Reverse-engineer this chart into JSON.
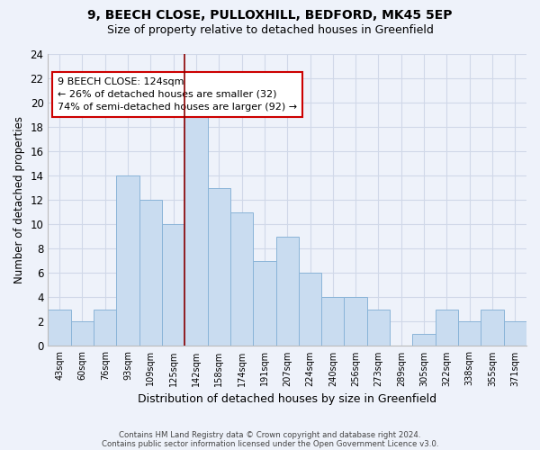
{
  "title": "9, BEECH CLOSE, PULLOXHILL, BEDFORD, MK45 5EP",
  "subtitle": "Size of property relative to detached houses in Greenfield",
  "xlabel": "Distribution of detached houses by size in Greenfield",
  "ylabel": "Number of detached properties",
  "categories": [
    "43sqm",
    "60sqm",
    "76sqm",
    "93sqm",
    "109sqm",
    "125sqm",
    "142sqm",
    "158sqm",
    "174sqm",
    "191sqm",
    "207sqm",
    "224sqm",
    "240sqm",
    "256sqm",
    "273sqm",
    "289sqm",
    "305sqm",
    "322sqm",
    "338sqm",
    "355sqm",
    "371sqm"
  ],
  "values": [
    3,
    2,
    3,
    14,
    12,
    10,
    19,
    13,
    11,
    7,
    9,
    6,
    4,
    4,
    3,
    0,
    1,
    3,
    2,
    3,
    2
  ],
  "bar_color": "#c9dcf0",
  "bar_edge_color": "#8ab4d8",
  "highlight_index": 5,
  "highlight_line_color": "#8b0000",
  "annotation_text": "9 BEECH CLOSE: 124sqm\n← 26% of detached houses are smaller (32)\n74% of semi-detached houses are larger (92) →",
  "annotation_box_color": "white",
  "annotation_box_edge_color": "#cc0000",
  "ylim": [
    0,
    24
  ],
  "yticks": [
    0,
    2,
    4,
    6,
    8,
    10,
    12,
    14,
    16,
    18,
    20,
    22,
    24
  ],
  "grid_color": "#d0d8e8",
  "bg_color": "#eef2fa",
  "footer_line1": "Contains HM Land Registry data © Crown copyright and database right 2024.",
  "footer_line2": "Contains public sector information licensed under the Open Government Licence v3.0."
}
